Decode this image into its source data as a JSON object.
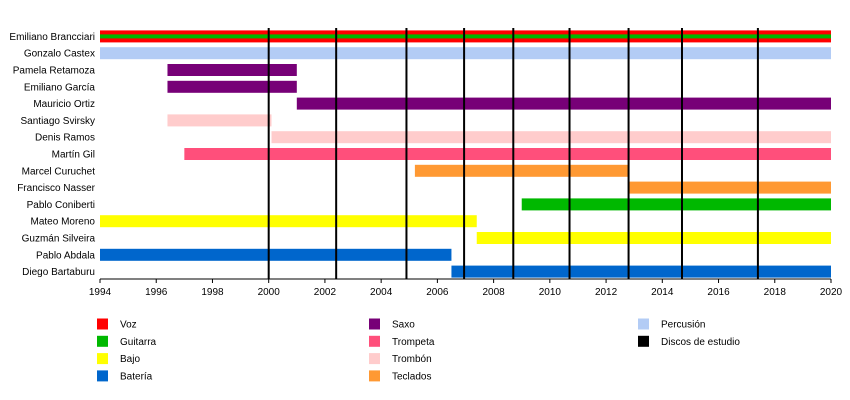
{
  "chart_data": {
    "type": "timeline",
    "x_range": [
      1994,
      2020
    ],
    "x_ticks": [
      "1994",
      "1996",
      "1998",
      "2000",
      "2002",
      "2004",
      "2006",
      "2008",
      "2010",
      "2012",
      "2014",
      "2016",
      "2018",
      "2020"
    ],
    "studio_albums": [
      2000,
      2002.4,
      2004.9,
      2006.95,
      2008.7,
      2010.7,
      2012.8,
      2014.7,
      2017.4
    ],
    "roles": {
      "voz": {
        "label": "Voz",
        "color": "#ff0000"
      },
      "guitarra": {
        "label": "Guitarra",
        "color": "#00b800"
      },
      "bajo": {
        "label": "Bajo",
        "color": "#ffff00"
      },
      "bateria": {
        "label": "Batería",
        "color": "#0066cc"
      },
      "saxo": {
        "label": "Saxo",
        "color": "#770077"
      },
      "trompeta": {
        "label": "Trompeta",
        "color": "#ff4f7b"
      },
      "trombon": {
        "label": "Trombón",
        "color": "#ffcccc"
      },
      "teclados": {
        "label": "Teclados",
        "color": "#ff9933"
      },
      "percusion": {
        "label": "Percusión",
        "color": "#b3ccf5"
      },
      "discos": {
        "label": "Discos de estudio",
        "color": "#000000"
      }
    },
    "legend_columns": [
      [
        "voz",
        "guitarra",
        "bajo",
        "bateria"
      ],
      [
        "saxo",
        "trompeta",
        "trombon",
        "teclados"
      ],
      [
        "percusion",
        "discos"
      ]
    ],
    "members": [
      {
        "name": "Emiliano Brancciari",
        "spans": [
          {
            "start": 1994,
            "end": 2020,
            "role": "voz",
            "secondary": "guitarra"
          }
        ]
      },
      {
        "name": "Gonzalo Castex",
        "spans": [
          {
            "start": 1994,
            "end": 2020,
            "role": "percusion"
          }
        ]
      },
      {
        "name": "Pamela Retamoza",
        "spans": [
          {
            "start": 1996.4,
            "end": 2001,
            "role": "saxo"
          }
        ]
      },
      {
        "name": "Emiliano García",
        "spans": [
          {
            "start": 1996.4,
            "end": 2001,
            "role": "saxo"
          }
        ]
      },
      {
        "name": "Mauricio Ortiz",
        "spans": [
          {
            "start": 2001,
            "end": 2020,
            "role": "saxo"
          }
        ]
      },
      {
        "name": "Santiago Svirsky",
        "spans": [
          {
            "start": 1996.4,
            "end": 2000.1,
            "role": "trombon"
          }
        ]
      },
      {
        "name": "Denis Ramos",
        "spans": [
          {
            "start": 2000.1,
            "end": 2020,
            "role": "trombon"
          }
        ]
      },
      {
        "name": "Martín Gil",
        "spans": [
          {
            "start": 1997,
            "end": 2020,
            "role": "trompeta"
          }
        ]
      },
      {
        "name": "Marcel Curuchet",
        "spans": [
          {
            "start": 2005.2,
            "end": 2012.8,
            "role": "teclados"
          }
        ]
      },
      {
        "name": "Francisco Nasser",
        "spans": [
          {
            "start": 2012.8,
            "end": 2020,
            "role": "teclados"
          }
        ]
      },
      {
        "name": "Pablo Coniberti",
        "spans": [
          {
            "start": 2009,
            "end": 2020,
            "role": "guitarra"
          }
        ]
      },
      {
        "name": "Mateo Moreno",
        "spans": [
          {
            "start": 1994,
            "end": 2007.4,
            "role": "bajo"
          }
        ]
      },
      {
        "name": "Guzmán Silveira",
        "spans": [
          {
            "start": 2007.4,
            "end": 2020,
            "role": "bajo"
          }
        ]
      },
      {
        "name": "Pablo Abdala",
        "spans": [
          {
            "start": 1994,
            "end": 2006.5,
            "role": "bateria"
          }
        ]
      },
      {
        "name": "Diego Bartaburu",
        "spans": [
          {
            "start": 2006.5,
            "end": 2020,
            "role": "bateria"
          }
        ]
      }
    ]
  }
}
